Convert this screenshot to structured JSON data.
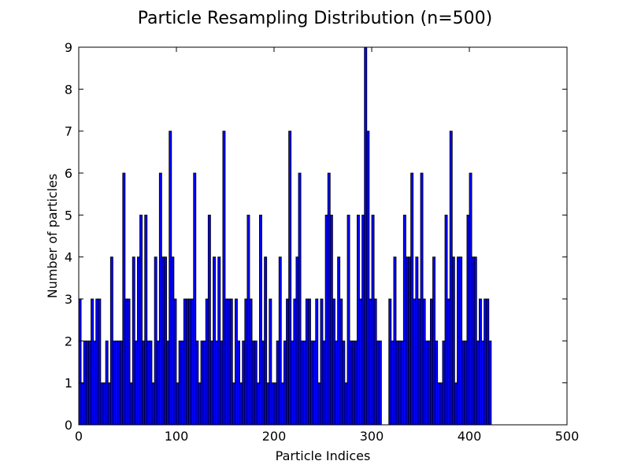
{
  "chart_data": {
    "type": "bar",
    "title": "Particle Resampling Distribution (n=500)",
    "xlabel": "Particle Indices",
    "ylabel": "Number of particles",
    "xlim": [
      0,
      500
    ],
    "ylim": [
      0,
      9
    ],
    "bin_width": 2.5,
    "bar_color": "#0000ff",
    "edge_color": "#000000",
    "x_ticks": [
      0,
      100,
      200,
      300,
      400,
      500
    ],
    "y_ticks": [
      0,
      1,
      2,
      3,
      4,
      5,
      6,
      7,
      8,
      9
    ],
    "grid": false,
    "values": [
      3,
      1,
      2,
      2,
      2,
      3,
      2,
      3,
      3,
      1,
      1,
      2,
      1,
      4,
      2,
      2,
      2,
      2,
      6,
      3,
      3,
      1,
      4,
      2,
      4,
      5,
      2,
      5,
      2,
      2,
      1,
      4,
      2,
      6,
      4,
      4,
      2,
      7,
      4,
      3,
      1,
      2,
      2,
      3,
      3,
      3,
      3,
      6,
      2,
      1,
      2,
      2,
      3,
      5,
      2,
      4,
      2,
      4,
      2,
      7,
      3,
      3,
      3,
      1,
      3,
      2,
      1,
      2,
      3,
      5,
      3,
      2,
      2,
      1,
      5,
      2,
      4,
      1,
      3,
      1,
      1,
      2,
      4,
      1,
      2,
      3,
      7,
      2,
      3,
      4,
      6,
      2,
      2,
      3,
      3,
      2,
      2,
      3,
      1,
      3,
      2,
      5,
      6,
      5,
      3,
      2,
      4,
      3,
      2,
      1,
      5,
      2,
      2,
      2,
      5,
      3,
      5,
      9,
      7,
      3,
      5,
      3,
      2,
      2,
      0,
      0,
      0,
      3,
      2,
      4,
      2,
      2,
      2,
      5,
      4,
      4,
      6,
      3,
      4,
      3,
      6,
      3,
      2,
      2,
      3,
      4,
      2,
      1,
      1,
      2,
      5,
      3,
      7,
      4,
      1,
      4,
      4,
      2,
      2,
      5,
      6,
      4,
      4,
      2,
      3,
      2,
      3,
      3,
      2
    ],
    "value_range_note": ""
  }
}
